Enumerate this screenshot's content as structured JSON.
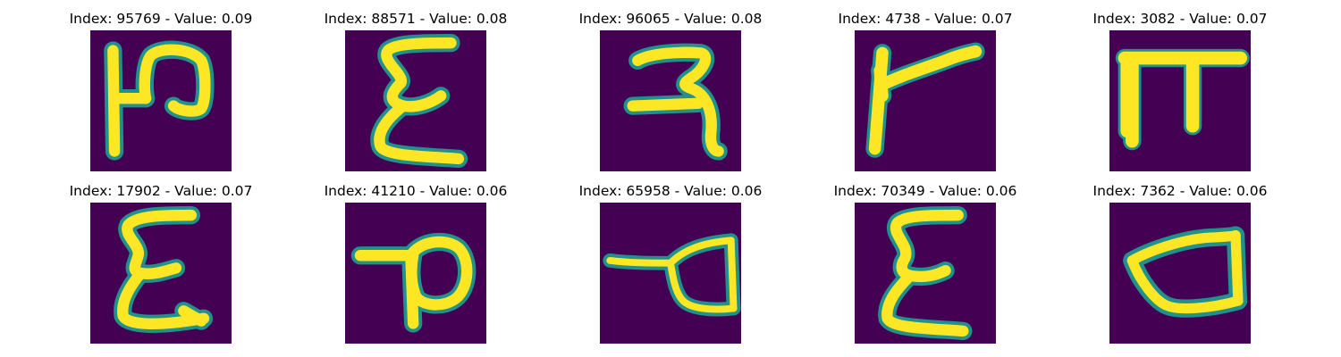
{
  "palette": {
    "background": "#440154",
    "stroke_edge": "#21918c",
    "stroke_core": "#fde725"
  },
  "panels": [
    {
      "title": "Index: 95769 - Value: 0.09",
      "glyph": "handwritten-glyph-95769"
    },
    {
      "title": "Index: 88571 - Value: 0.08",
      "glyph": "handwritten-glyph-88571"
    },
    {
      "title": "Index: 96065 - Value: 0.08",
      "glyph": "handwritten-glyph-96065"
    },
    {
      "title": "Index: 4738 - Value: 0.07",
      "glyph": "handwritten-glyph-4738"
    },
    {
      "title": "Index: 3082 - Value: 0.07",
      "glyph": "handwritten-glyph-3082"
    },
    {
      "title": "Index: 17902 - Value: 0.07",
      "glyph": "handwritten-glyph-17902"
    },
    {
      "title": "Index: 41210 - Value: 0.06",
      "glyph": "handwritten-glyph-41210"
    },
    {
      "title": "Index: 65958 - Value: 0.06",
      "glyph": "handwritten-glyph-65958"
    },
    {
      "title": "Index: 70349 - Value: 0.06",
      "glyph": "handwritten-glyph-70349"
    },
    {
      "title": "Index: 7362 - Value: 0.06",
      "glyph": "handwritten-glyph-7362"
    }
  ]
}
